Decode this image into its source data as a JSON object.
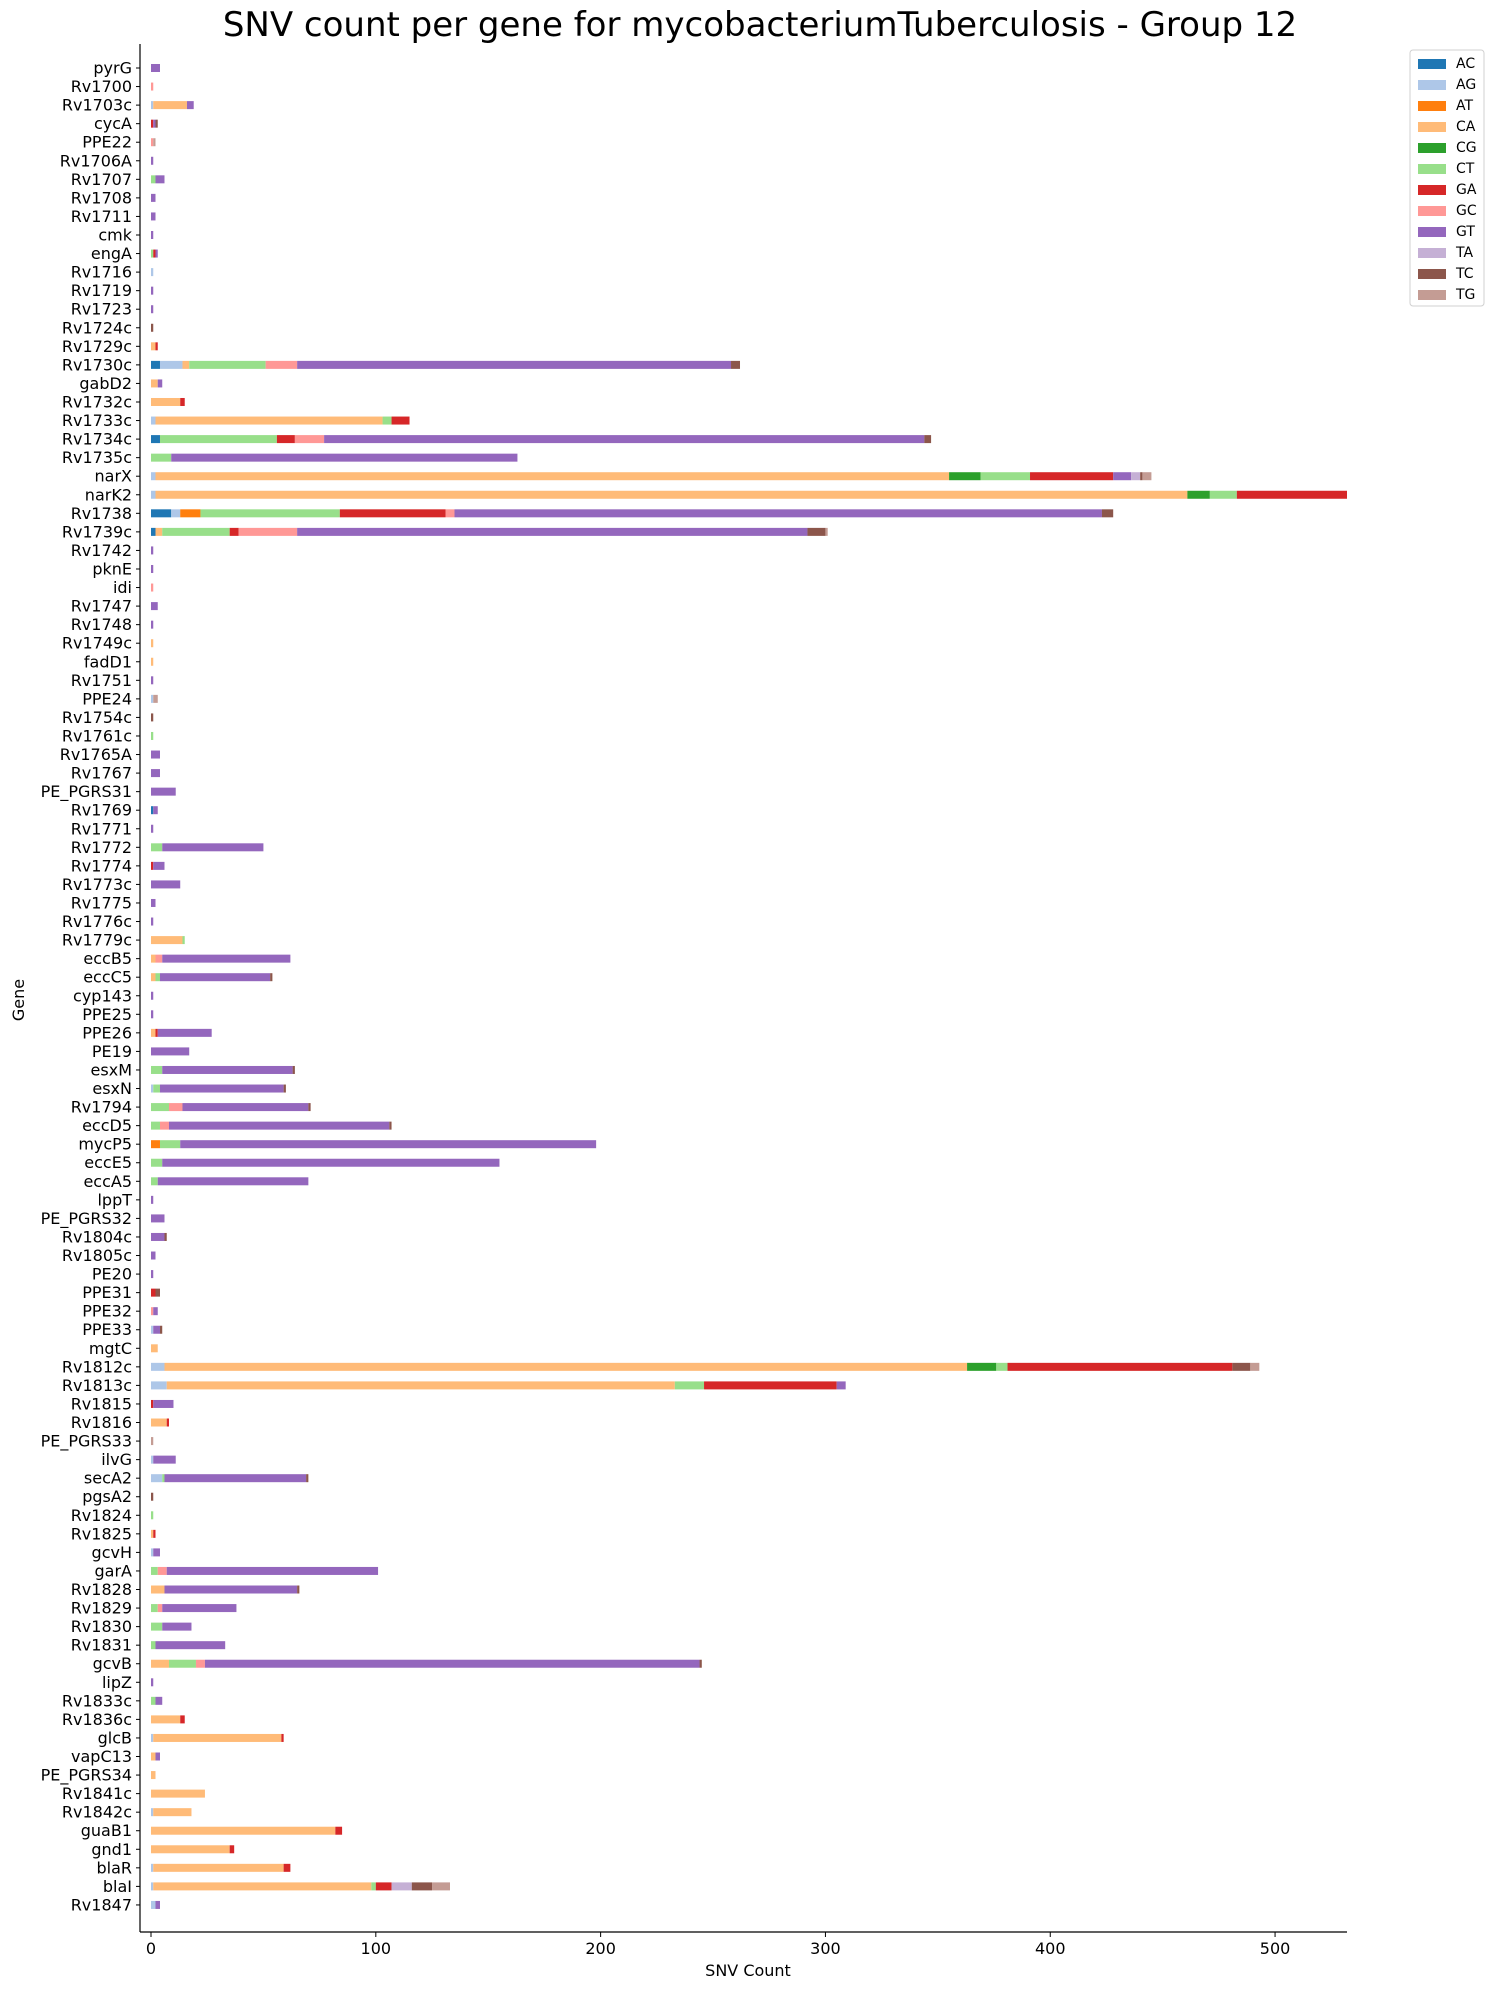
{
  "chart_data": {
    "type": "bar",
    "orientation": "horizontal",
    "stacked": true,
    "title": "SNV count per gene for mycobacteriumTuberculosis - Group 12",
    "xlabel": "SNV Count",
    "ylabel": "Gene",
    "xlim": [
      0,
      532
    ],
    "xticks": [
      0,
      100,
      200,
      300,
      400,
      500
    ],
    "grid": false,
    "legend_position": "top-right",
    "series": [
      {
        "name": "AC",
        "color": "#1f77b4"
      },
      {
        "name": "AG",
        "color": "#aec7e8"
      },
      {
        "name": "AT",
        "color": "#ff7f0e"
      },
      {
        "name": "CA",
        "color": "#ffbb78"
      },
      {
        "name": "CG",
        "color": "#2ca02c"
      },
      {
        "name": "CT",
        "color": "#98df8a"
      },
      {
        "name": "GA",
        "color": "#d62728"
      },
      {
        "name": "GC",
        "color": "#ff9896"
      },
      {
        "name": "GT",
        "color": "#9467bd"
      },
      {
        "name": "TA",
        "color": "#c5b0d5"
      },
      {
        "name": "TC",
        "color": "#8c564b"
      },
      {
        "name": "TG",
        "color": "#c49c94"
      }
    ],
    "genes": [
      {
        "name": "pyrG",
        "counts": {
          "GT": 4
        }
      },
      {
        "name": "Rv1700",
        "counts": {
          "GC": 1
        }
      },
      {
        "name": "Rv1703c",
        "counts": {
          "AG": 1,
          "CA": 15,
          "GT": 3
        }
      },
      {
        "name": "cycA",
        "counts": {
          "GT": 1,
          "GA": 1,
          "TC": 1
        }
      },
      {
        "name": "PPE22",
        "counts": {
          "GC": 1,
          "TG": 1
        }
      },
      {
        "name": "Rv1706A",
        "counts": {
          "GT": 1
        }
      },
      {
        "name": "Rv1707",
        "counts": {
          "CT": 2,
          "GT": 4
        }
      },
      {
        "name": "Rv1708",
        "counts": {
          "GT": 2
        }
      },
      {
        "name": "Rv1711",
        "counts": {
          "GT": 2
        }
      },
      {
        "name": "cmk",
        "counts": {
          "GT": 1
        }
      },
      {
        "name": "engA",
        "counts": {
          "CT": 1,
          "GA": 1,
          "GT": 1
        }
      },
      {
        "name": "Rv1716",
        "counts": {
          "AG": 1
        }
      },
      {
        "name": "Rv1719",
        "counts": {
          "GT": 1
        }
      },
      {
        "name": "Rv1723",
        "counts": {
          "GT": 1
        }
      },
      {
        "name": "Rv1724c",
        "counts": {
          "TC": 1
        }
      },
      {
        "name": "Rv1729c",
        "counts": {
          "CA": 2,
          "GA": 1
        }
      },
      {
        "name": "Rv1730c",
        "counts": {
          "AC": 4,
          "AG": 10,
          "CA": 3,
          "CT": 34,
          "GC": 14,
          "GT": 193,
          "TC": 4
        }
      },
      {
        "name": "gabD2",
        "counts": {
          "CA": 3,
          "GT": 2
        }
      },
      {
        "name": "Rv1732c",
        "counts": {
          "CA": 13,
          "GA": 2
        }
      },
      {
        "name": "Rv1733c",
        "counts": {
          "AG": 2,
          "CA": 101,
          "CT": 4,
          "GA": 8
        }
      },
      {
        "name": "Rv1734c",
        "counts": {
          "AC": 4,
          "CT": 52,
          "GA": 8,
          "GC": 13,
          "GT": 267,
          "TC": 3
        }
      },
      {
        "name": "Rv1735c",
        "counts": {
          "CT": 9,
          "GT": 154
        }
      },
      {
        "name": "narX",
        "counts": {
          "AG": 2,
          "CA": 353,
          "CG": 14,
          "CT": 22,
          "GA": 37,
          "GT": 8,
          "TA": 4,
          "TC": 1,
          "TG": 4
        }
      },
      {
        "name": "narK2",
        "counts": {
          "AG": 2,
          "CA": 459,
          "CG": 10,
          "CT": 12,
          "GA": 49
        }
      },
      {
        "name": "Rv1738",
        "counts": {
          "AC": 9,
          "AG": 4,
          "AT": 9,
          "CT": 62,
          "GA": 47,
          "GC": 4,
          "GT": 288,
          "TC": 5
        }
      },
      {
        "name": "Rv1739c",
        "counts": {
          "AC": 2,
          "CA": 3,
          "CT": 30,
          "GA": 4,
          "GC": 26,
          "GT": 227,
          "TC": 8,
          "TG": 1
        }
      },
      {
        "name": "Rv1742",
        "counts": {
          "GT": 1
        }
      },
      {
        "name": "pknE",
        "counts": {
          "GT": 1
        }
      },
      {
        "name": "idi",
        "counts": {
          "GC": 1
        }
      },
      {
        "name": "Rv1747",
        "counts": {
          "GT": 3
        }
      },
      {
        "name": "Rv1748",
        "counts": {
          "GT": 1
        }
      },
      {
        "name": "Rv1749c",
        "counts": {
          "CA": 1
        }
      },
      {
        "name": "fadD1",
        "counts": {
          "CA": 1
        }
      },
      {
        "name": "Rv1751",
        "counts": {
          "GT": 1
        }
      },
      {
        "name": "PPE24",
        "counts": {
          "AG": 1,
          "TG": 2
        }
      },
      {
        "name": "Rv1754c",
        "counts": {
          "TC": 1
        }
      },
      {
        "name": "Rv1761c",
        "counts": {
          "CT": 1
        }
      },
      {
        "name": "Rv1765A",
        "counts": {
          "GT": 4
        }
      },
      {
        "name": "Rv1767",
        "counts": {
          "GT": 4
        }
      },
      {
        "name": "PE_PGRS31",
        "counts": {
          "GT": 11
        }
      },
      {
        "name": "Rv1769",
        "counts": {
          "AC": 1,
          "GT": 2
        }
      },
      {
        "name": "Rv1771",
        "counts": {
          "GT": 1
        }
      },
      {
        "name": "Rv1772",
        "counts": {
          "CT": 5,
          "GT": 45
        }
      },
      {
        "name": "Rv1774",
        "counts": {
          "GA": 1,
          "GT": 5
        }
      },
      {
        "name": "Rv1773c",
        "counts": {
          "GT": 13
        }
      },
      {
        "name": "Rv1775",
        "counts": {
          "GT": 2
        }
      },
      {
        "name": "Rv1776c",
        "counts": {
          "GT": 1
        }
      },
      {
        "name": "Rv1779c",
        "counts": {
          "CA": 14,
          "CT": 1
        }
      },
      {
        "name": "eccB5",
        "counts": {
          "CA": 2,
          "GC": 3,
          "GT": 57
        }
      },
      {
        "name": "eccC5",
        "counts": {
          "CA": 2,
          "CT": 2,
          "GT": 49,
          "TC": 1
        }
      },
      {
        "name": "cyp143",
        "counts": {
          "GT": 1
        }
      },
      {
        "name": "PPE25",
        "counts": {
          "GT": 1
        }
      },
      {
        "name": "PPE26",
        "counts": {
          "CA": 2,
          "GA": 1,
          "GT": 24
        }
      },
      {
        "name": "PE19",
        "counts": {
          "GT": 17
        }
      },
      {
        "name": "esxM",
        "counts": {
          "CT": 5,
          "GT": 58,
          "TC": 1
        }
      },
      {
        "name": "esxN",
        "counts": {
          "AG": 1,
          "CT": 3,
          "GT": 55,
          "TC": 1
        }
      },
      {
        "name": "Rv1794",
        "counts": {
          "CT": 8,
          "GC": 6,
          "GT": 56,
          "TC": 1
        }
      },
      {
        "name": "eccD5",
        "counts": {
          "CT": 4,
          "GC": 4,
          "GT": 98,
          "TC": 1
        }
      },
      {
        "name": "mycP5",
        "counts": {
          "AT": 4,
          "CT": 9,
          "GT": 185
        }
      },
      {
        "name": "eccE5",
        "counts": {
          "CT": 5,
          "GT": 150
        }
      },
      {
        "name": "eccA5",
        "counts": {
          "CT": 3,
          "GT": 67
        }
      },
      {
        "name": "lppT",
        "counts": {
          "GT": 1
        }
      },
      {
        "name": "PE_PGRS32",
        "counts": {
          "GT": 6
        }
      },
      {
        "name": "Rv1804c",
        "counts": {
          "GT": 6,
          "TC": 1
        }
      },
      {
        "name": "Rv1805c",
        "counts": {
          "GT": 2
        }
      },
      {
        "name": "PE20",
        "counts": {
          "GT": 1
        }
      },
      {
        "name": "PPE31",
        "counts": {
          "GA": 2,
          "TC": 2
        }
      },
      {
        "name": "PPE32",
        "counts": {
          "GC": 1,
          "GT": 2
        }
      },
      {
        "name": "PPE33",
        "counts": {
          "AG": 1,
          "GT": 3,
          "TC": 1
        }
      },
      {
        "name": "mgtC",
        "counts": {
          "CA": 3
        }
      },
      {
        "name": "Rv1812c",
        "counts": {
          "AG": 6,
          "CA": 357,
          "CG": 13,
          "CT": 5,
          "GA": 100,
          "TC": 8,
          "TG": 4
        }
      },
      {
        "name": "Rv1813c",
        "counts": {
          "AG": 7,
          "CA": 226,
          "CT": 13,
          "GA": 59,
          "GT": 4
        }
      },
      {
        "name": "Rv1815",
        "counts": {
          "GA": 1,
          "GT": 9
        }
      },
      {
        "name": "Rv1816",
        "counts": {
          "CA": 7,
          "GA": 1
        }
      },
      {
        "name": "PE_PGRS33",
        "counts": {
          "TG": 1
        }
      },
      {
        "name": "ilvG",
        "counts": {
          "AG": 1,
          "GT": 10
        }
      },
      {
        "name": "secA2",
        "counts": {
          "AG": 5,
          "CT": 1,
          "GT": 63,
          "TC": 1
        }
      },
      {
        "name": "pgsA2",
        "counts": {
          "TC": 1
        }
      },
      {
        "name": "Rv1824",
        "counts": {
          "CT": 1
        }
      },
      {
        "name": "Rv1825",
        "counts": {
          "CA": 1,
          "GA": 1
        }
      },
      {
        "name": "gcvH",
        "counts": {
          "AG": 1,
          "GT": 3
        }
      },
      {
        "name": "garA",
        "counts": {
          "CT": 3,
          "GC": 4,
          "GT": 94
        }
      },
      {
        "name": "Rv1828",
        "counts": {
          "CA": 6,
          "GT": 59,
          "TC": 1
        }
      },
      {
        "name": "Rv1829",
        "counts": {
          "CT": 3,
          "GC": 2,
          "GT": 33
        }
      },
      {
        "name": "Rv1830",
        "counts": {
          "CT": 5,
          "GT": 13
        }
      },
      {
        "name": "Rv1831",
        "counts": {
          "CT": 2,
          "GT": 31
        }
      },
      {
        "name": "gcvB",
        "counts": {
          "CA": 8,
          "CT": 12,
          "GC": 4,
          "GT": 220,
          "TC": 1
        }
      },
      {
        "name": "lipZ",
        "counts": {
          "GT": 1
        }
      },
      {
        "name": "Rv1833c",
        "counts": {
          "CT": 2,
          "GT": 3
        }
      },
      {
        "name": "Rv1836c",
        "counts": {
          "CA": 13,
          "GA": 2
        }
      },
      {
        "name": "glcB",
        "counts": {
          "AG": 1,
          "CA": 57,
          "GA": 1
        }
      },
      {
        "name": "vapC13",
        "counts": {
          "CA": 2,
          "GT": 2
        }
      },
      {
        "name": "PE_PGRS34",
        "counts": {
          "CA": 2
        }
      },
      {
        "name": "Rv1841c",
        "counts": {
          "CA": 24
        }
      },
      {
        "name": "Rv1842c",
        "counts": {
          "CA": 17,
          "AG": 1
        }
      },
      {
        "name": "guaB1",
        "counts": {
          "CA": 82,
          "GA": 3
        }
      },
      {
        "name": "gnd1",
        "counts": {
          "CA": 35,
          "GA": 2
        }
      },
      {
        "name": "blaR",
        "counts": {
          "AG": 1,
          "CA": 58,
          "GA": 3
        }
      },
      {
        "name": "blaI",
        "counts": {
          "AG": 1,
          "CA": 97,
          "CT": 2,
          "GA": 7,
          "TA": 9,
          "TC": 9,
          "TG": 8
        }
      },
      {
        "name": "Rv1847",
        "counts": {
          "AG": 2,
          "GT": 2
        }
      }
    ]
  }
}
